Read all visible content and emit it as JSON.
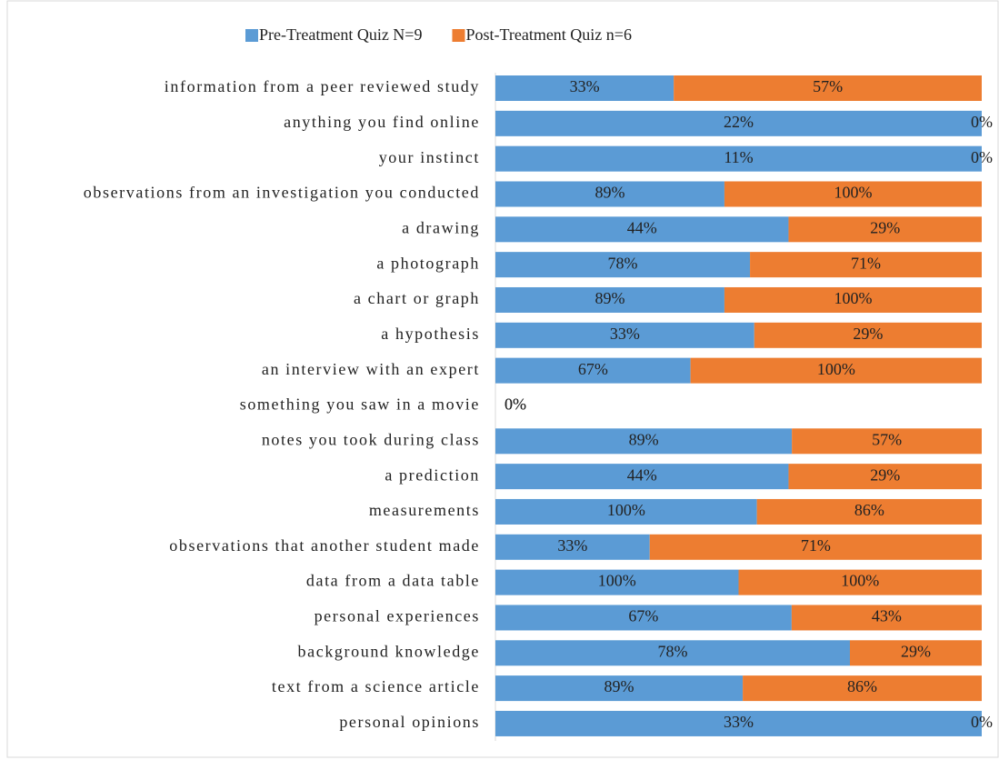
{
  "chart_data": {
    "type": "bar",
    "orientation": "horizontal",
    "stacking": "percent",
    "categories": [
      "information from a peer reviewed study",
      "anything you find online",
      "your instinct",
      "observations from an investigation you conducted",
      "a drawing",
      "a photograph",
      "a chart or graph",
      "a hypothesis",
      "an interview with an expert",
      "something you saw in a movie",
      "notes you took during class",
      "a prediction",
      "measurements",
      "observations that another student made",
      "data from a data table",
      "personal experiences",
      "background knowledge",
      "text from a science article",
      "personal opinions"
    ],
    "series": [
      {
        "name": "Pre-Treatment Quiz N=9",
        "color": "#5b9bd5",
        "values": [
          33,
          22,
          11,
          89,
          44,
          78,
          89,
          33,
          67,
          0,
          89,
          44,
          100,
          33,
          100,
          67,
          78,
          89,
          33
        ],
        "value_labels": [
          "33%",
          "22%",
          "11%",
          "89%",
          "44%",
          "78%",
          "89%",
          "33%",
          "67%",
          "0%",
          "89%",
          "44%",
          "100%",
          "33%",
          "100%",
          "67%",
          "78%",
          "89%",
          "33%"
        ]
      },
      {
        "name": "Post-Treatment Quiz n=6",
        "color": "#ed7d31",
        "values": [
          57,
          0,
          0,
          100,
          29,
          71,
          100,
          29,
          100,
          0,
          57,
          29,
          86,
          71,
          100,
          43,
          29,
          86,
          0
        ],
        "value_labels": [
          "57%",
          "0%",
          "0%",
          "100%",
          "29%",
          "71%",
          "100%",
          "29%",
          "100%",
          "0%",
          "57%",
          "29%",
          "86%",
          "71%",
          "100%",
          "43%",
          "29%",
          "86%",
          "0%"
        ]
      }
    ],
    "legend": "top"
  }
}
